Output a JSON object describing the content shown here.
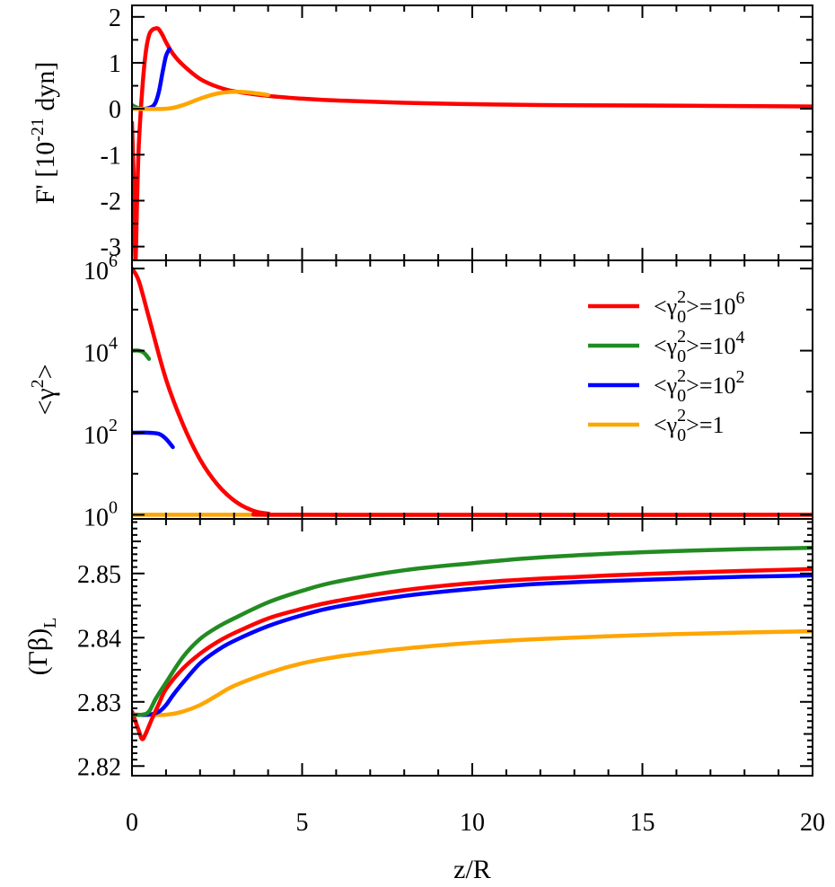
{
  "colors": {
    "red": "#ff0000",
    "green": "#228b22",
    "blue": "#0000ff",
    "orange": "#ffa500",
    "axis": "#000000"
  },
  "figure": {
    "xlabel": "z/R",
    "xticks": [
      "0",
      "5",
      "10",
      "15",
      "20"
    ]
  },
  "chart_data": [
    {
      "type": "line",
      "panel": "top",
      "ylabel": "F' [10",
      "ylabel_exp": "-21",
      "ylabel_unit": " dyn]",
      "xlim": [
        0,
        20
      ],
      "ylim": [
        -3.3,
        2.25
      ],
      "yticks": [
        "-3",
        "-2",
        "-1",
        "0",
        "1",
        "2"
      ],
      "series": [
        {
          "name": "10^6",
          "color": "red",
          "x": [
            0,
            0.05,
            0.1,
            0.15,
            0.2,
            0.3,
            0.4,
            0.5,
            0.6,
            0.7,
            0.75,
            0.8,
            0.9,
            1.0,
            1.2,
            1.5,
            2.0,
            2.5,
            3.0,
            4.0,
            5.0,
            6.0,
            8.0,
            10.0,
            12.0,
            15.0,
            20.0
          ],
          "y": [
            -0.3,
            -1.5,
            -3.3,
            -2.0,
            -0.8,
            0.4,
            1.2,
            1.6,
            1.72,
            1.75,
            1.75,
            1.72,
            1.6,
            1.45,
            1.2,
            0.95,
            0.65,
            0.48,
            0.38,
            0.28,
            0.22,
            0.18,
            0.13,
            0.1,
            0.08,
            0.07,
            0.05
          ]
        },
        {
          "name": "10^4",
          "color": "green",
          "x": [
            0,
            0.1,
            0.2,
            0.3
          ],
          "y": [
            0.08,
            0.04,
            0.01,
            0.0
          ]
        },
        {
          "name": "10^2",
          "color": "blue",
          "x": [
            0,
            0.2,
            0.4,
            0.6,
            0.7,
            0.8,
            0.9,
            1.0,
            1.1
          ],
          "y": [
            0.0,
            0.0,
            0.0,
            0.05,
            0.15,
            0.4,
            0.8,
            1.15,
            1.3
          ]
        },
        {
          "name": "1",
          "color": "orange",
          "x": [
            0,
            1.0,
            1.5,
            2.0,
            2.5,
            3.0,
            3.5,
            4.0
          ],
          "y": [
            0.0,
            0.0,
            0.08,
            0.22,
            0.33,
            0.37,
            0.35,
            0.3
          ]
        }
      ]
    },
    {
      "type": "line",
      "panel": "middle",
      "yscale": "log",
      "ylabel": "<γ",
      "ylabel_exp": "2",
      "ylabel_end": ">",
      "xlim": [
        0,
        20
      ],
      "ylim_log10": [
        -0.1,
        6.2
      ],
      "yticks": [
        {
          "base": "10",
          "exp": "0"
        },
        {
          "base": "10",
          "exp": "2"
        },
        {
          "base": "10",
          "exp": "4"
        },
        {
          "base": "10",
          "exp": "6"
        }
      ],
      "legend": {
        "position": "top-right",
        "entries": [
          {
            "prefix": "<γ",
            "sup": "2",
            "sub": "0",
            "suffix": ">=10",
            "suffix_sup": "6",
            "color": "red"
          },
          {
            "prefix": "<γ",
            "sup": "2",
            "sub": "0",
            "suffix": ">=10",
            "suffix_sup": "4",
            "color": "green"
          },
          {
            "prefix": "<γ",
            "sup": "2",
            "sub": "0",
            "suffix": ">=10",
            "suffix_sup": "2",
            "color": "blue"
          },
          {
            "prefix": "<γ",
            "sup": "2",
            "sub": "0",
            "suffix": ">=1",
            "suffix_sup": "",
            "color": "orange"
          }
        ]
      },
      "series": [
        {
          "name": "10^4",
          "color": "green",
          "x": [
            0,
            0.2,
            0.35,
            0.5
          ],
          "y_log10": [
            4.0,
            4.0,
            3.95,
            3.8
          ]
        },
        {
          "name": "10^2",
          "color": "blue",
          "x": [
            0,
            0.5,
            0.8,
            1.0,
            1.2
          ],
          "y_log10": [
            2.0,
            2.0,
            1.97,
            1.85,
            1.65
          ]
        },
        {
          "name": "1",
          "color": "orange",
          "x": [
            0,
            20
          ],
          "y_log10": [
            0.0,
            0.0
          ]
        },
        {
          "name": "10^6",
          "color": "red",
          "x": [
            0,
            0.2,
            0.5,
            1.0,
            1.5,
            2.0,
            2.5,
            3.0,
            3.5,
            4.0,
            5.0,
            20.0
          ],
          "y_log10": [
            6.0,
            5.7,
            4.8,
            3.3,
            2.2,
            1.35,
            0.75,
            0.35,
            0.12,
            0.03,
            0.0,
            0.0
          ]
        }
      ]
    },
    {
      "type": "line",
      "panel": "bottom",
      "ylabel": "(Γβ)",
      "ylabel_sub": "L",
      "xlim": [
        0,
        20
      ],
      "ylim": [
        2.8185,
        2.8585
      ],
      "yticks": [
        "2.82",
        "2.83",
        "2.84",
        "2.85"
      ],
      "series": [
        {
          "name": "1",
          "color": "orange",
          "x": [
            0,
            1.0,
            1.5,
            2.0,
            2.5,
            3.0,
            4.0,
            5.0,
            6.0,
            7.0,
            8.0,
            10.0,
            12.0,
            15.0,
            18.0,
            20.0
          ],
          "y": [
            2.828,
            2.828,
            2.8285,
            2.8295,
            2.831,
            2.8325,
            2.8345,
            2.836,
            2.837,
            2.8377,
            2.8383,
            2.8392,
            2.8398,
            2.8404,
            2.8408,
            2.841
          ]
        },
        {
          "name": "10^2",
          "color": "blue",
          "x": [
            0,
            0.5,
            0.8,
            1.0,
            1.2,
            1.5,
            2.0,
            2.5,
            3.0,
            4.0,
            5.0,
            6.0,
            8.0,
            10.0,
            12.0,
            15.0,
            18.0,
            20.0
          ],
          "y": [
            2.828,
            2.828,
            2.8285,
            2.8295,
            2.831,
            2.833,
            2.836,
            2.838,
            2.8395,
            2.8418,
            2.8435,
            2.8448,
            2.8465,
            2.8476,
            2.8484,
            2.849,
            2.8495,
            2.8497
          ]
        },
        {
          "name": "10^6",
          "color": "red",
          "x": [
            0,
            0.2,
            0.3,
            0.4,
            0.6,
            0.8,
            1.0,
            1.5,
            2.0,
            2.5,
            3.0,
            4.0,
            5.0,
            6.0,
            8.0,
            10.0,
            12.0,
            15.0,
            18.0,
            20.0
          ],
          "y": [
            2.8285,
            2.8255,
            2.8242,
            2.825,
            2.8275,
            2.8298,
            2.832,
            2.8352,
            2.8375,
            2.8393,
            2.8407,
            2.843,
            2.8445,
            2.8457,
            2.8474,
            2.8485,
            2.8492,
            2.8499,
            2.8504,
            2.8507
          ]
        },
        {
          "name": "10^4",
          "color": "green",
          "x": [
            0,
            0.3,
            0.5,
            0.7,
            1.0,
            1.5,
            2.0,
            2.5,
            3.0,
            4.0,
            5.0,
            6.0,
            8.0,
            10.0,
            12.0,
            15.0,
            18.0,
            20.0
          ],
          "y": [
            2.828,
            2.828,
            2.8285,
            2.8305,
            2.833,
            2.837,
            2.8398,
            2.8416,
            2.843,
            2.8455,
            2.8473,
            2.8487,
            2.8505,
            2.8516,
            2.8525,
            2.8533,
            2.8538,
            2.854
          ]
        }
      ]
    }
  ]
}
